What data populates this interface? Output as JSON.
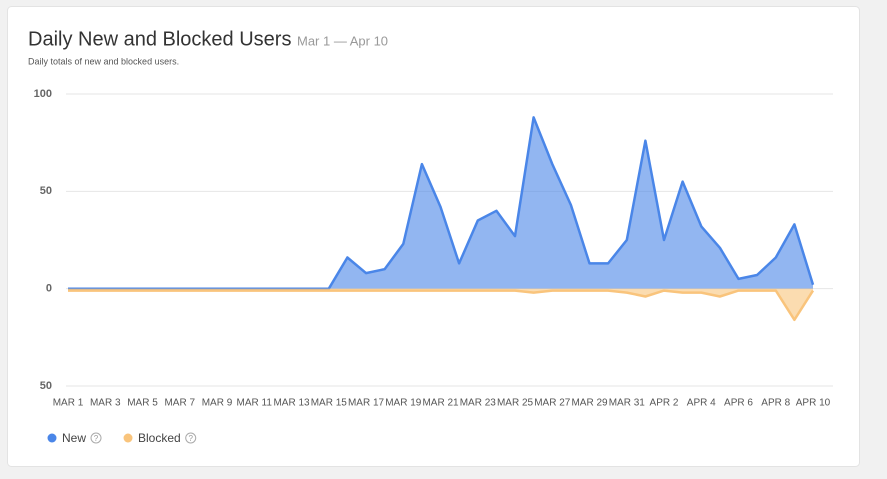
{
  "chart_data": {
    "type": "area",
    "title": "Daily New and Blocked Users",
    "subtitle": "Mar 1 — Apr 10",
    "description": "Daily totals of new and blocked users.",
    "categories": [
      "MAR 1",
      null,
      "MAR 3",
      null,
      "MAR 5",
      null,
      "MAR 7",
      null,
      "MAR 9",
      null,
      "MAR 11",
      null,
      "MAR 13",
      null,
      "MAR 15",
      null,
      "MAR 17",
      null,
      "MAR 19",
      null,
      "MAR 21",
      null,
      "MAR 23",
      null,
      "MAR 25",
      null,
      "MAR 27",
      null,
      "MAR 29",
      null,
      "MAR 31",
      null,
      "APR 2",
      null,
      "APR 4",
      null,
      "APR 6",
      null,
      "APR 8",
      null,
      "APR 10"
    ],
    "series": [
      {
        "name": "New",
        "color": "#4a86e8",
        "values": [
          0,
          0,
          0,
          0,
          0,
          0,
          0,
          0,
          0,
          0,
          0,
          0,
          0,
          0,
          0,
          16,
          8,
          10,
          23,
          64,
          42,
          13,
          35,
          40,
          27,
          88,
          64,
          43,
          13,
          13,
          25,
          76,
          25,
          55,
          32,
          21,
          5,
          7,
          16,
          33,
          2
        ]
      },
      {
        "name": "Blocked",
        "color": "#f9c47c",
        "values": [
          -1,
          -1,
          -1,
          -1,
          -1,
          -1,
          -1,
          -1,
          -1,
          -1,
          -1,
          -1,
          -1,
          -1,
          -1,
          -1,
          -1,
          -1,
          -1,
          -1,
          -1,
          -1,
          -1,
          -1,
          -1,
          -2,
          -1,
          -1,
          -1,
          -1,
          -2,
          -4,
          -1,
          -2,
          -2,
          -4,
          -1,
          -1,
          -1,
          -16,
          -1
        ]
      }
    ],
    "ylim": [
      -50,
      100
    ],
    "yticks": [
      {
        "value": -50,
        "label": "50"
      },
      0,
      50,
      100
    ],
    "grid": true,
    "legend": "bottom-left"
  }
}
